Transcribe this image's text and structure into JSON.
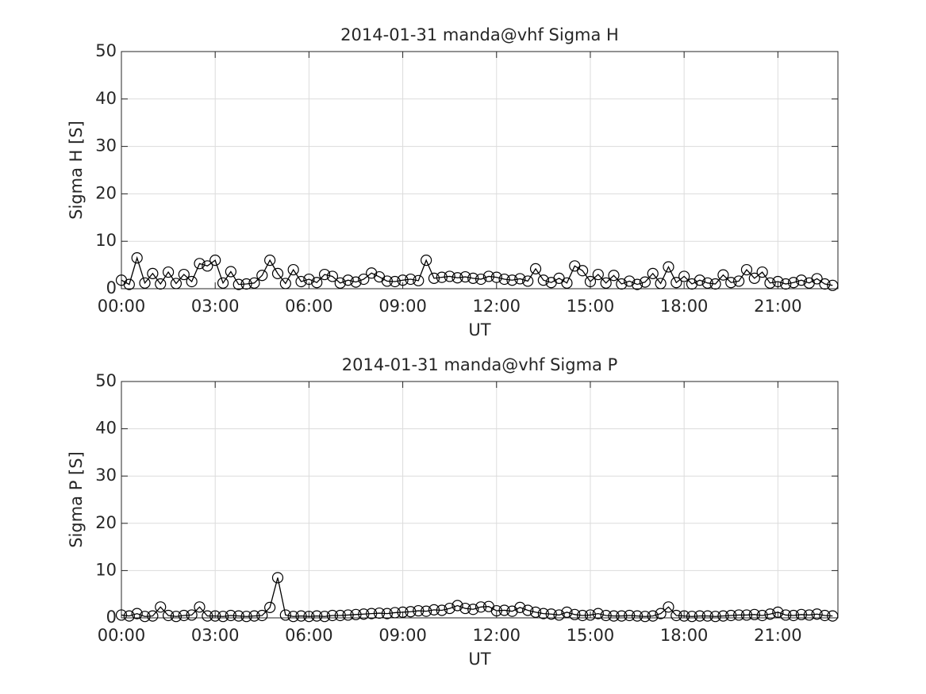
{
  "chart_data": [
    {
      "type": "line",
      "title": "2014-01-31  manda@vhf Sigma H",
      "xlabel": "UT",
      "ylabel": "Sigma H [S]",
      "color": "#000000",
      "marker": "circle",
      "grid": true,
      "xlim": [
        0,
        22.92
      ],
      "ylim": [
        0,
        50
      ],
      "xticks": [
        {
          "value": 0,
          "label": "00:00"
        },
        {
          "value": 3,
          "label": "03:00"
        },
        {
          "value": 6,
          "label": "06:00"
        },
        {
          "value": 9,
          "label": "09:00"
        },
        {
          "value": 12,
          "label": "12:00"
        },
        {
          "value": 15,
          "label": "15:00"
        },
        {
          "value": 18,
          "label": "18:00"
        },
        {
          "value": 21,
          "label": "21:00"
        }
      ],
      "yticks": [
        0,
        10,
        20,
        30,
        40,
        50
      ],
      "x": [
        0,
        0.25,
        0.5,
        0.75,
        1,
        1.25,
        1.5,
        1.75,
        2,
        2.25,
        2.5,
        2.75,
        3,
        3.25,
        3.5,
        3.75,
        4,
        4.25,
        4.5,
        4.75,
        5,
        5.25,
        5.5,
        5.75,
        6,
        6.25,
        6.5,
        6.75,
        7,
        7.25,
        7.5,
        7.75,
        8,
        8.25,
        8.5,
        8.75,
        9,
        9.25,
        9.5,
        9.75,
        10,
        10.25,
        10.5,
        10.75,
        11,
        11.25,
        11.5,
        11.75,
        12,
        12.25,
        12.5,
        12.75,
        13,
        13.25,
        13.5,
        13.75,
        14,
        14.25,
        14.5,
        14.75,
        15,
        15.25,
        15.5,
        15.75,
        16,
        16.25,
        16.5,
        16.75,
        17,
        17.25,
        17.5,
        17.75,
        18,
        18.25,
        18.5,
        18.75,
        19,
        19.25,
        19.5,
        19.75,
        20,
        20.25,
        20.5,
        20.75,
        21,
        21.25,
        21.5,
        21.75,
        22,
        22.25,
        22.5,
        22.75
      ],
      "values": [
        1.8,
        0.9,
        6.5,
        1.2,
        3.2,
        1.0,
        3.5,
        1.1,
        3.0,
        1.5,
        5.3,
        4.8,
        6.0,
        1.2,
        3.6,
        0.9,
        1.0,
        1.2,
        2.8,
        6.0,
        3.2,
        1.1,
        4.0,
        1.5,
        2.0,
        1.3,
        3.0,
        2.6,
        1.2,
        1.8,
        1.4,
        2.0,
        3.3,
        2.5,
        1.6,
        1.5,
        1.8,
        2.0,
        1.7,
        6.0,
        2.2,
        2.4,
        2.6,
        2.3,
        2.5,
        2.2,
        2.0,
        2.6,
        2.4,
        2.0,
        1.8,
        2.1,
        1.6,
        4.2,
        1.8,
        1.3,
        2.2,
        1.2,
        4.8,
        3.8,
        1.5,
        3.0,
        1.2,
        2.8,
        1.0,
        1.6,
        0.9,
        1.4,
        3.2,
        1.1,
        4.6,
        1.3,
        2.6,
        1.0,
        1.8,
        1.2,
        1.0,
        2.9,
        1.3,
        1.6,
        4.0,
        2.2,
        3.5,
        1.2,
        1.5,
        1.0,
        1.3,
        1.8,
        1.2,
        2.1,
        1.0,
        0.7
      ]
    },
    {
      "type": "line",
      "title": "2014-01-31  manda@vhf Sigma P",
      "xlabel": "UT",
      "ylabel": "Sigma P [S]",
      "color": "#000000",
      "marker": "circle",
      "grid": true,
      "xlim": [
        0,
        22.92
      ],
      "ylim": [
        0,
        50
      ],
      "xticks": [
        {
          "value": 0,
          "label": "00:00"
        },
        {
          "value": 3,
          "label": "03:00"
        },
        {
          "value": 6,
          "label": "06:00"
        },
        {
          "value": 9,
          "label": "09:00"
        },
        {
          "value": 12,
          "label": "12:00"
        },
        {
          "value": 15,
          "label": "15:00"
        },
        {
          "value": 18,
          "label": "18:00"
        },
        {
          "value": 21,
          "label": "21:00"
        }
      ],
      "yticks": [
        0,
        10,
        20,
        30,
        40,
        50
      ],
      "x": [
        0,
        0.25,
        0.5,
        0.75,
        1,
        1.25,
        1.5,
        1.75,
        2,
        2.25,
        2.5,
        2.75,
        3,
        3.25,
        3.5,
        3.75,
        4,
        4.25,
        4.5,
        4.75,
        5,
        5.25,
        5.5,
        5.75,
        6,
        6.25,
        6.5,
        6.75,
        7,
        7.25,
        7.5,
        7.75,
        8,
        8.25,
        8.5,
        8.75,
        9,
        9.25,
        9.5,
        9.75,
        10,
        10.25,
        10.5,
        10.75,
        11,
        11.25,
        11.5,
        11.75,
        12,
        12.25,
        12.5,
        12.75,
        13,
        13.25,
        13.5,
        13.75,
        14,
        14.25,
        14.5,
        14.75,
        15,
        15.25,
        15.5,
        15.75,
        16,
        16.25,
        16.5,
        16.75,
        17,
        17.25,
        17.5,
        17.75,
        18,
        18.25,
        18.5,
        18.75,
        19,
        19.25,
        19.5,
        19.75,
        20,
        20.25,
        20.5,
        20.75,
        21,
        21.25,
        21.5,
        21.75,
        22,
        22.25,
        22.5,
        22.75
      ],
      "values": [
        0.6,
        0.4,
        0.9,
        0.3,
        0.4,
        2.3,
        0.5,
        0.3,
        0.5,
        0.6,
        2.3,
        0.4,
        0.4,
        0.3,
        0.5,
        0.4,
        0.3,
        0.4,
        0.5,
        2.2,
        8.5,
        0.6,
        0.3,
        0.4,
        0.3,
        0.4,
        0.3,
        0.5,
        0.5,
        0.6,
        0.7,
        0.8,
        0.9,
        1.0,
        0.9,
        1.1,
        1.2,
        1.3,
        1.5,
        1.4,
        1.7,
        1.6,
        2.0,
        2.6,
        2.0,
        1.8,
        2.3,
        2.4,
        1.5,
        1.6,
        1.4,
        2.2,
        1.6,
        1.2,
        0.9,
        0.8,
        0.6,
        1.2,
        0.7,
        0.5,
        0.6,
        0.9,
        0.5,
        0.4,
        0.4,
        0.5,
        0.4,
        0.3,
        0.4,
        0.9,
        2.3,
        0.5,
        0.4,
        0.3,
        0.4,
        0.4,
        0.3,
        0.4,
        0.5,
        0.6,
        0.6,
        0.7,
        0.5,
        0.8,
        1.2,
        0.6,
        0.5,
        0.7,
        0.6,
        0.8,
        0.5,
        0.4
      ]
    }
  ]
}
